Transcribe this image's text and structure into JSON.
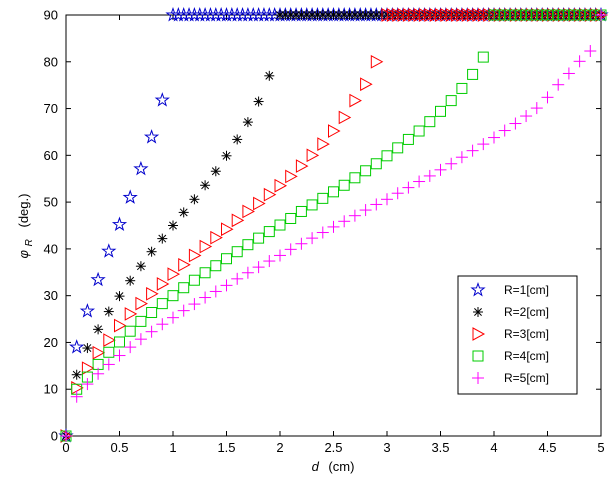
{
  "chart_data": {
    "type": "scatter",
    "title": "",
    "xlabel_var": "d",
    "xlabel_unit": "(cm)",
    "ylabel_var": "φ",
    "ylabel_sub": "R",
    "ylabel_unit": "(deg.)",
    "xlim": [
      0,
      5
    ],
    "ylim": [
      0,
      90
    ],
    "x_ticks": [
      "0",
      "0.5",
      "1",
      "1.5",
      "2",
      "2.5",
      "3",
      "3.5",
      "4",
      "4.5",
      "5"
    ],
    "y_ticks": [
      "0",
      "10",
      "20",
      "30",
      "40",
      "50",
      "60",
      "70",
      "80",
      "90"
    ],
    "grid": false,
    "legend_position": "lower-right",
    "series": [
      {
        "name": "R=1[cm]",
        "marker": "star",
        "color": "#0000cc",
        "x": [
          0,
          0.1,
          0.2,
          0.3,
          0.4,
          0.5,
          0.6,
          0.7,
          0.8,
          0.9
        ],
        "y": [
          0,
          19,
          26.7,
          33.4,
          39.5,
          45.2,
          51,
          57.1,
          63.9,
          71.8
        ],
        "flat_x_start": 1.0,
        "flat_x_end": 5.0,
        "flat_step": 0.05,
        "flat_y": 90
      },
      {
        "name": "R=2[cm]",
        "marker": "asterisk",
        "color": "#000000",
        "x": [
          0,
          0.1,
          0.2,
          0.3,
          0.4,
          0.5,
          0.6,
          0.7,
          0.8,
          0.9,
          1.0,
          1.1,
          1.2,
          1.3,
          1.4,
          1.5,
          1.6,
          1.7,
          1.8,
          1.9
        ],
        "y": [
          0,
          13.1,
          18.8,
          22.8,
          26.6,
          29.9,
          33.2,
          36.3,
          39.4,
          42.2,
          45,
          47.8,
          50.6,
          53.6,
          56.6,
          59.9,
          63.4,
          67.1,
          71.5,
          77
        ],
        "flat_x_start": 2.0,
        "flat_x_end": 5.0,
        "flat_step": 0.05,
        "flat_y": 90
      },
      {
        "name": "R=3[cm]",
        "marker": "triangle-right",
        "color": "#ff0000",
        "x": [
          0,
          0.1,
          0.2,
          0.3,
          0.4,
          0.5,
          0.6,
          0.7,
          0.8,
          0.9,
          1.0,
          1.1,
          1.2,
          1.3,
          1.4,
          1.5,
          1.6,
          1.7,
          1.8,
          1.9,
          2.0,
          2.1,
          2.2,
          2.3,
          2.4,
          2.5,
          2.6,
          2.7,
          2.8,
          2.9
        ],
        "y": [
          0,
          10.3,
          14.5,
          17.8,
          20.5,
          23.6,
          26.1,
          28.3,
          30.4,
          32.5,
          34.6,
          36.6,
          38.6,
          40.5,
          42.4,
          44.2,
          46.1,
          48,
          49.7,
          51.6,
          53.5,
          55.5,
          57.7,
          60,
          62.4,
          65.2,
          68.1,
          71.7,
          75.2,
          80
        ],
        "flat_x_start": 3.0,
        "flat_x_end": 5.0,
        "flat_step": 0.05,
        "flat_y": 90
      },
      {
        "name": "R=4[cm]",
        "marker": "square",
        "color": "#00cc00",
        "x": [
          0,
          0.1,
          0.2,
          0.3,
          0.4,
          0.5,
          0.6,
          0.7,
          0.8,
          0.9,
          1.0,
          1.1,
          1.2,
          1.3,
          1.4,
          1.5,
          1.6,
          1.7,
          1.8,
          1.9,
          2.0,
          2.1,
          2.2,
          2.3,
          2.4,
          2.5,
          2.6,
          2.7,
          2.8,
          2.9,
          3.0,
          3.1,
          3.2,
          3.3,
          3.4,
          3.5,
          3.6,
          3.7,
          3.8,
          3.9
        ],
        "y": [
          0,
          10,
          12.6,
          15.3,
          17.9,
          20.1,
          22.4,
          24.5,
          26.4,
          28.3,
          30,
          31.7,
          33.3,
          34.9,
          36.4,
          37.9,
          39.4,
          40.9,
          42.3,
          43.7,
          45.1,
          46.5,
          48,
          49.4,
          50.8,
          52.2,
          53.6,
          55.2,
          56.7,
          58.2,
          59.9,
          61.6,
          63.4,
          65.2,
          67.2,
          69.4,
          71.7,
          74.3,
          77.3,
          81
        ],
        "flat_x_start": 4.0,
        "flat_x_end": 5.0,
        "flat_step": 0.05,
        "flat_y": 90
      },
      {
        "name": "R=5[cm]",
        "marker": "plus",
        "color": "#ff00ff",
        "x": [
          0,
          0.1,
          0.2,
          0.3,
          0.4,
          0.5,
          0.6,
          0.7,
          0.8,
          0.9,
          1.0,
          1.1,
          1.2,
          1.3,
          1.4,
          1.5,
          1.6,
          1.7,
          1.8,
          1.9,
          2.0,
          2.1,
          2.2,
          2.3,
          2.4,
          2.5,
          2.6,
          2.7,
          2.8,
          2.9,
          3.0,
          3.1,
          3.2,
          3.3,
          3.4,
          3.5,
          3.6,
          3.7,
          3.8,
          3.9,
          4.0,
          4.1,
          4.2,
          4.3,
          4.4,
          4.5,
          4.6,
          4.7,
          4.8,
          4.9
        ],
        "y": [
          0,
          8.4,
          11.1,
          13.3,
          15.3,
          17.2,
          19,
          20.7,
          22.3,
          23.9,
          25.3,
          26.8,
          28.2,
          29.6,
          30.9,
          32.2,
          33.6,
          34.9,
          36.1,
          37.4,
          38.6,
          39.9,
          41.1,
          42.3,
          43.5,
          44.7,
          45.9,
          47.1,
          48.3,
          49.5,
          50.6,
          51.9,
          53.1,
          54.4,
          55.6,
          56.9,
          58.2,
          59.6,
          61,
          62.4,
          63.8,
          65.3,
          66.8,
          68.4,
          70.1,
          72.4,
          75.1,
          77.5,
          80.1,
          82.3
        ],
        "flat_x_start": 5.0,
        "flat_x_end": 5.0,
        "flat_step": 0.05,
        "flat_y": 90
      }
    ]
  }
}
